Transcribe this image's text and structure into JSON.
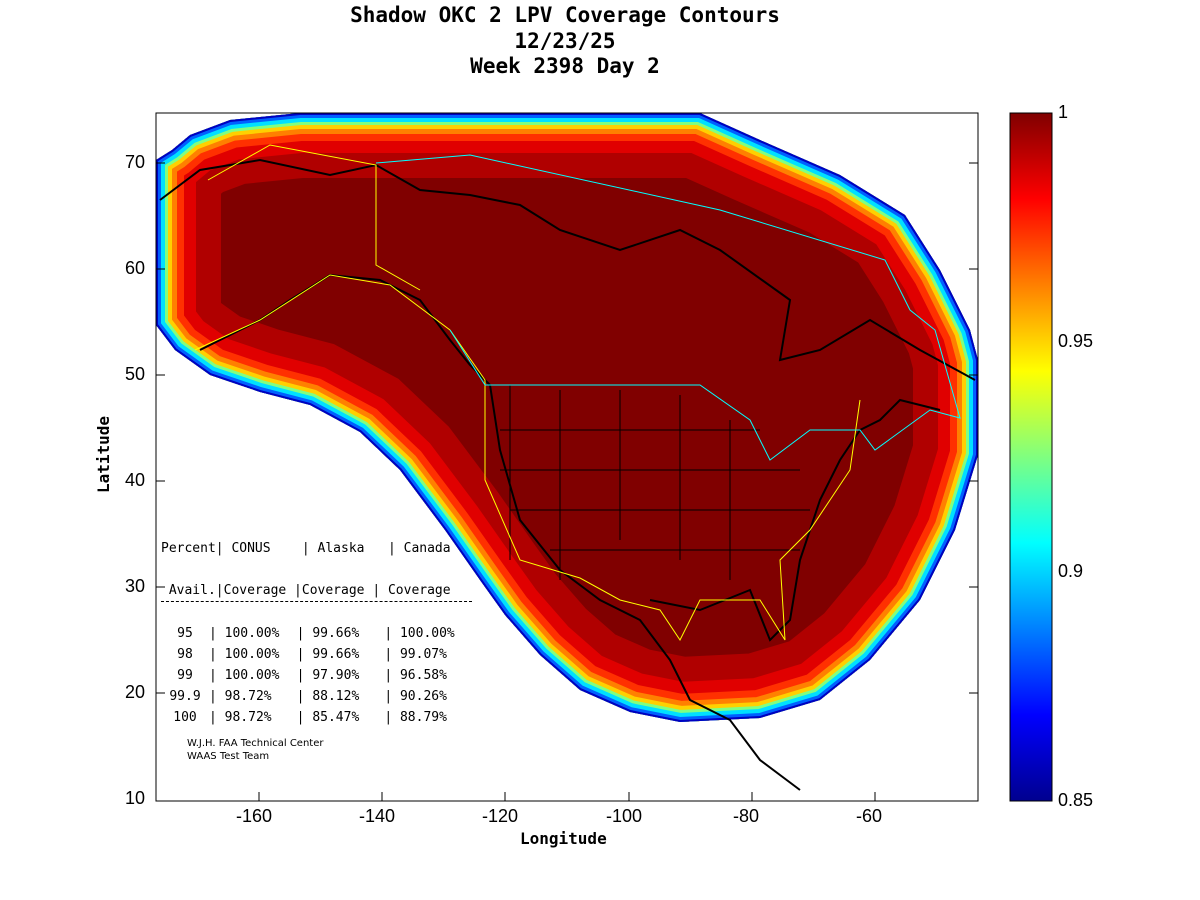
{
  "chart_data": {
    "type": "heatmap",
    "title": [
      "Shadow OKC 2 LPV Coverage Contours",
      "12/23/25",
      "Week 2398 Day 2"
    ],
    "xlabel": "Longitude",
    "ylabel": "Latitude",
    "xlim": [
      -176.7,
      -43.3
    ],
    "ylim": [
      10,
      75
    ],
    "xticks": [
      "-160",
      "-140",
      "-120",
      "-100",
      "-80",
      "-60"
    ],
    "yticks": [
      "70",
      "60",
      "50",
      "40",
      "30",
      "20",
      "10"
    ],
    "colorbar": {
      "range": [
        0.85,
        1
      ],
      "ticks": [
        "1",
        "0.95",
        "0.9",
        "0.85"
      ],
      "colormap": "jet"
    },
    "table": {
      "header1": "Percent| CONUS    | Alaska   | Canada",
      "header2": " Avail.|Coverage |Coverage | Coverage",
      "rows": [
        {
          "avail": "95",
          "conus": "100.00%",
          "alaska": "99.66%",
          "canada": "100.00%"
        },
        {
          "avail": "98",
          "conus": "100.00%",
          "alaska": "99.66%",
          "canada": "99.07%"
        },
        {
          "avail": "99",
          "conus": "100.00%",
          "alaska": "97.90%",
          "canada": "96.58%"
        },
        {
          "avail": "99.9",
          "conus": "98.72%",
          "alaska": "88.12%",
          "canada": "90.26%"
        },
        {
          "avail": "100",
          "conus": "98.72%",
          "alaska": "85.47%",
          "canada": "88.79%"
        }
      ]
    },
    "credits": [
      "W.J.H. FAA Technical Center",
      "WAAS Test Team"
    ]
  }
}
